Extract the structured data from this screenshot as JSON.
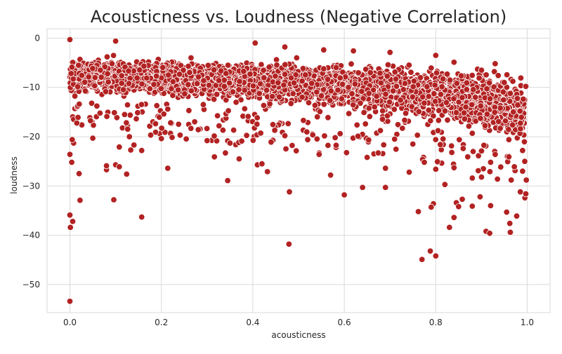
{
  "chart_data": {
    "type": "scatter",
    "title": "Acousticness vs. Loudness (Negative Correlation)",
    "xlabel": "acousticness",
    "ylabel": "loudness",
    "xlim": [
      -0.05,
      1.05
    ],
    "ylim": [
      -55.7,
      1.9
    ],
    "x_ticks": [
      0.0,
      0.2,
      0.4,
      0.6,
      0.8,
      1.0
    ],
    "x_tick_labels": [
      "0.0",
      "0.2",
      "0.4",
      "0.6",
      "0.8",
      "1.0"
    ],
    "y_ticks": [
      0,
      -10,
      -20,
      -30,
      -40,
      -50
    ],
    "y_tick_labels": [
      "0",
      "−10",
      "−20",
      "−30",
      "−40",
      "−50"
    ],
    "grid": true,
    "style": {
      "background": "#ffffff",
      "grid_color": "#d9d9d9",
      "point_fill": "#b22222",
      "point_edge": "#ffffff"
    },
    "points": [
      [
        0.0,
        -53.4
      ],
      [
        0.001,
        -38.4
      ],
      [
        0.0,
        -35.9
      ],
      [
        0.006,
        -37.2
      ],
      [
        0.004,
        -25.2
      ],
      [
        0.0,
        -23.6
      ],
      [
        0.008,
        -21.3
      ],
      [
        0.02,
        -27.5
      ],
      [
        0.022,
        -32.9
      ],
      [
        0.005,
        -20.6
      ],
      [
        0.08,
        -26.7
      ],
      [
        0.08,
        -25.9
      ],
      [
        0.096,
        -32.8
      ],
      [
        0.1,
        -25.7
      ],
      [
        0.108,
        -26.1
      ],
      [
        0.124,
        -27.6
      ],
      [
        0.108,
        -22.1
      ],
      [
        0.133,
        -22.7
      ],
      [
        0.14,
        -21.7
      ],
      [
        0.157,
        -36.3
      ],
      [
        0.157,
        -22.8
      ],
      [
        0.214,
        -26.4
      ],
      [
        0.316,
        -24.1
      ],
      [
        0.345,
        -28.9
      ],
      [
        0.35,
        -21.3
      ],
      [
        0.34,
        -23.3
      ],
      [
        0.37,
        -24.5
      ],
      [
        0.41,
        -25.7
      ],
      [
        0.42,
        -25.5
      ],
      [
        0.432,
        -27.1
      ],
      [
        0.48,
        -31.2
      ],
      [
        0.479,
        -41.8
      ],
      [
        0.6,
        -31.8
      ],
      [
        0.57,
        -27.8
      ],
      [
        0.545,
        -23.6
      ],
      [
        0.64,
        -30.3
      ],
      [
        0.65,
        -24.2
      ],
      [
        0.69,
        -30.3
      ],
      [
        0.69,
        -26.4
      ],
      [
        0.742,
        -27.2
      ],
      [
        0.75,
        -21.5
      ],
      [
        0.762,
        -35.2
      ],
      [
        0.77,
        -44.9
      ],
      [
        0.788,
        -43.2
      ],
      [
        0.8,
        -44.2
      ],
      [
        0.795,
        -33.6
      ],
      [
        0.79,
        -34.3
      ],
      [
        0.775,
        -25.2
      ],
      [
        0.8,
        -26.6
      ],
      [
        0.82,
        -29.7
      ],
      [
        0.83,
        -38.4
      ],
      [
        0.84,
        -36.4
      ],
      [
        0.845,
        -33.4
      ],
      [
        0.85,
        -34.2
      ],
      [
        0.858,
        -32.7
      ],
      [
        0.84,
        -26.3
      ],
      [
        0.835,
        -23.2
      ],
      [
        0.87,
        -24.1
      ],
      [
        0.88,
        -28.4
      ],
      [
        0.88,
        -34.1
      ],
      [
        0.893,
        -26.9
      ],
      [
        0.897,
        -32.2
      ],
      [
        0.9,
        -28.2
      ],
      [
        0.91,
        -39.2
      ],
      [
        0.918,
        -39.6
      ],
      [
        0.92,
        -34.0
      ],
      [
        0.92,
        -25.2
      ],
      [
        0.935,
        -28.6
      ],
      [
        0.955,
        -35.3
      ],
      [
        0.962,
        -37.6
      ],
      [
        0.963,
        -39.4
      ],
      [
        0.965,
        -28.8
      ],
      [
        0.972,
        -26.1
      ],
      [
        0.977,
        -36.1
      ],
      [
        0.985,
        -31.2
      ],
      [
        0.995,
        -32.4
      ],
      [
        0.997,
        -31.6
      ],
      [
        0.998,
        -28.8
      ],
      [
        0.99,
        -27.0
      ],
      [
        0.05,
        -20.3
      ],
      [
        0.13,
        -20.0
      ],
      [
        0.2,
        -20.4
      ],
      [
        0.3,
        -20.8
      ],
      [
        0.44,
        -21.1
      ],
      [
        0.47,
        -19.8
      ],
      [
        0.52,
        -20.6
      ],
      [
        0.58,
        -20.2
      ],
      [
        0.63,
        -19.9
      ],
      [
        0.71,
        -20.5
      ],
      [
        0.76,
        -19.7
      ],
      [
        0.81,
        -21.6
      ],
      [
        0.86,
        -22.4
      ],
      [
        0.9,
        -22.9
      ],
      [
        0.93,
        -23.6
      ],
      [
        0.96,
        -24.1
      ],
      [
        0.99,
        -22.8
      ],
      [
        0.997,
        -9.8
      ],
      [
        0.0,
        -0.3
      ],
      [
        0.1,
        -0.6
      ],
      [
        0.405,
        -1.0
      ],
      [
        0.47,
        -1.8
      ],
      [
        0.555,
        -2.4
      ],
      [
        0.62,
        -2.6
      ],
      [
        0.7,
        -2.9
      ],
      [
        0.8,
        -3.5
      ],
      [
        0.84,
        -4.9
      ],
      [
        0.9,
        -6.5
      ],
      [
        0.93,
        -5.2
      ]
    ]
  }
}
